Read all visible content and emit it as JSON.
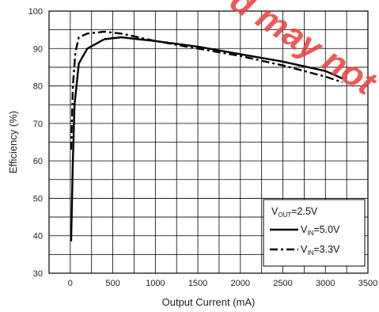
{
  "chart_data": {
    "type": "line",
    "title": "",
    "xlabel": "Output Current (mA)",
    "ylabel": "Efficiency (%)",
    "xlim": [
      -250,
      3500
    ],
    "ylim": [
      30,
      100
    ],
    "x_ticks": [
      0,
      500,
      1000,
      1500,
      2000,
      2500,
      3000,
      3500
    ],
    "y_ticks": [
      30,
      40,
      50,
      60,
      70,
      80,
      90,
      100
    ],
    "x_tick_labels": [
      "0",
      "500",
      "1000",
      "1500",
      "2000",
      "2500",
      "3000",
      "3500"
    ],
    "y_tick_labels": [
      "30",
      "40",
      "50",
      "60",
      "70",
      "80",
      "90",
      "100"
    ],
    "grid": true,
    "legend": {
      "placement": "bottom-right",
      "header": {
        "main": "V",
        "sub": "OUT",
        "rest": "=2.5V"
      }
    },
    "series": [
      {
        "name": "VIN=5.0V",
        "label": {
          "main": "V",
          "sub": "IN",
          "rest": "=5.0V"
        },
        "style": "solid",
        "color": "#000000",
        "x": [
          10,
          30,
          50,
          100,
          200,
          400,
          600,
          800,
          1000,
          1500,
          2000,
          2500,
          3000,
          3200
        ],
        "y": [
          38.5,
          60,
          75,
          86,
          90,
          92.5,
          93,
          92.5,
          92,
          90.5,
          88.5,
          86.5,
          84,
          82
        ]
      },
      {
        "name": "VIN=3.3V",
        "label": {
          "main": "V",
          "sub": "IN",
          "rest": "=3.3V"
        },
        "style": "dashdot",
        "color": "#000000",
        "x": [
          10,
          30,
          60,
          100,
          200,
          400,
          600,
          800,
          1000,
          1500,
          2000,
          2500,
          3000,
          3200
        ],
        "y": [
          63,
          80,
          89,
          93,
          94,
          94.5,
          94,
          93,
          92,
          90,
          88,
          85.5,
          82.5,
          81
        ]
      }
    ]
  },
  "watermark": "d may not"
}
